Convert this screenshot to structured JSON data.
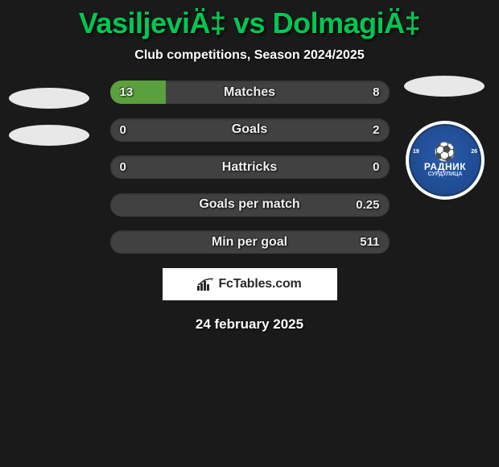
{
  "title": "VasiljeviÄ‡ vs DolmagiÄ‡",
  "subtitle": "Club competitions, Season 2024/2025",
  "date": "24 february 2025",
  "footer_brand": "FcTables.com",
  "colors": {
    "bg": "#1a1a1a",
    "accent": "#00c853",
    "bar_bg": "#414141",
    "bar_fill": "#5aa03d",
    "text": "#f0f0f0"
  },
  "badges": {
    "left": {
      "type": "placeholder-ellipses"
    },
    "right": {
      "type": "club-crest",
      "text_top": "РАДНИК",
      "text_bottom": "СУРДУЛИЦА",
      "year_left": "19",
      "year_right": "26",
      "primary_color": "#2a5caa"
    }
  },
  "rows": [
    {
      "label": "Matches",
      "left": "13",
      "right": "8",
      "left_fill_pct": 20,
      "right_fill_pct": 0
    },
    {
      "label": "Goals",
      "left": "0",
      "right": "2",
      "left_fill_pct": 0,
      "right_fill_pct": 0
    },
    {
      "label": "Hattricks",
      "left": "0",
      "right": "0",
      "left_fill_pct": 0,
      "right_fill_pct": 0
    },
    {
      "label": "Goals per match",
      "left": "",
      "right": "0.25",
      "left_fill_pct": 0,
      "right_fill_pct": 0
    },
    {
      "label": "Min per goal",
      "left": "",
      "right": "511",
      "left_fill_pct": 0,
      "right_fill_pct": 0
    }
  ]
}
